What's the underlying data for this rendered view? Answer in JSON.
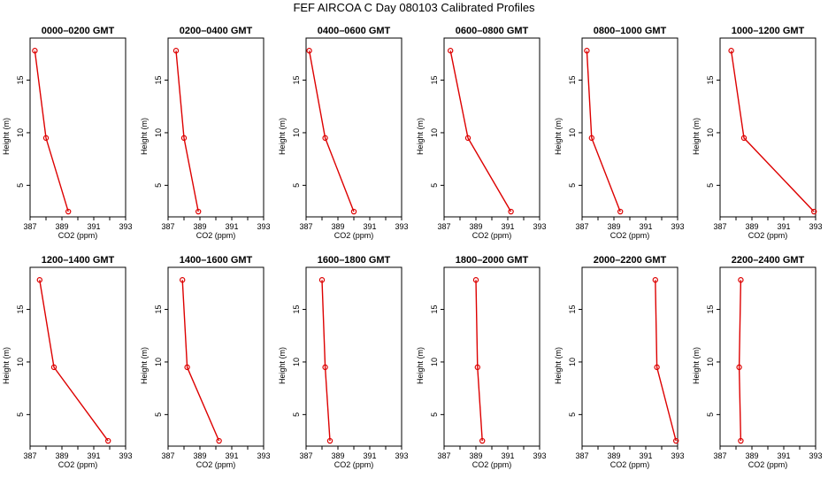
{
  "title": "FEF AIRCOA C  Day 080103  Calibrated Profiles",
  "chart_data": [
    {
      "type": "line",
      "title": "0000–0200 GMT",
      "xlabel": "CO2 (ppm)",
      "ylabel": "Height (m)",
      "xlim": [
        387,
        393
      ],
      "ylim": [
        2,
        19
      ],
      "xticks": [
        "387",
        "389",
        "391",
        "393"
      ],
      "yticks": [
        "5",
        "10",
        "15"
      ],
      "series": [
        {
          "x": [
            387.3,
            388.0,
            389.4
          ],
          "y": [
            17.8,
            9.5,
            2.5
          ]
        }
      ],
      "color": "#dd0000"
    },
    {
      "type": "line",
      "title": "0200–0400 GMT",
      "xlabel": "CO2 (ppm)",
      "ylabel": "Height (m)",
      "xlim": [
        387,
        393
      ],
      "ylim": [
        2,
        19
      ],
      "xticks": [
        "387",
        "389",
        "391",
        "393"
      ],
      "yticks": [
        "5",
        "10",
        "15"
      ],
      "series": [
        {
          "x": [
            387.5,
            388.0,
            388.9
          ],
          "y": [
            17.8,
            9.5,
            2.5
          ]
        }
      ],
      "color": "#dd0000"
    },
    {
      "type": "line",
      "title": "0400–0600 GMT",
      "xlabel": "CO2 (ppm)",
      "ylabel": "Height (m)",
      "xlim": [
        387,
        393
      ],
      "ylim": [
        2,
        19
      ],
      "xticks": [
        "387",
        "389",
        "391",
        "393"
      ],
      "yticks": [
        "5",
        "10",
        "15"
      ],
      "series": [
        {
          "x": [
            387.2,
            388.2,
            390.0
          ],
          "y": [
            17.8,
            9.5,
            2.5
          ]
        }
      ],
      "color": "#dd0000"
    },
    {
      "type": "line",
      "title": "0600–0800 GMT",
      "xlabel": "CO2 (ppm)",
      "ylabel": "Height (m)",
      "xlim": [
        387,
        393
      ],
      "ylim": [
        2,
        19
      ],
      "xticks": [
        "387",
        "389",
        "391",
        "393"
      ],
      "yticks": [
        "5",
        "10",
        "15"
      ],
      "series": [
        {
          "x": [
            387.4,
            388.5,
            391.2
          ],
          "y": [
            17.8,
            9.5,
            2.5
          ]
        }
      ],
      "color": "#dd0000"
    },
    {
      "type": "line",
      "title": "0800–1000 GMT",
      "xlabel": "CO2 (ppm)",
      "ylabel": "Height (m)",
      "xlim": [
        387,
        393
      ],
      "ylim": [
        2,
        19
      ],
      "xticks": [
        "387",
        "389",
        "391",
        "393"
      ],
      "yticks": [
        "5",
        "10",
        "15"
      ],
      "series": [
        {
          "x": [
            387.3,
            387.6,
            389.4
          ],
          "y": [
            17.8,
            9.5,
            2.5
          ]
        }
      ],
      "color": "#dd0000"
    },
    {
      "type": "line",
      "title": "1000–1200 GMT",
      "xlabel": "CO2 (ppm)",
      "ylabel": "Height (m)",
      "xlim": [
        387,
        393
      ],
      "ylim": [
        2,
        19
      ],
      "xticks": [
        "387",
        "389",
        "391",
        "393"
      ],
      "yticks": [
        "5",
        "10",
        "15"
      ],
      "series": [
        {
          "x": [
            387.7,
            388.5,
            392.9
          ],
          "y": [
            17.8,
            9.5,
            2.5
          ]
        }
      ],
      "color": "#dd0000"
    },
    {
      "type": "line",
      "title": "1200–1400 GMT",
      "xlabel": "CO2 (ppm)",
      "ylabel": "Height (m)",
      "xlim": [
        387,
        393
      ],
      "ylim": [
        2,
        19
      ],
      "xticks": [
        "387",
        "389",
        "391",
        "393"
      ],
      "yticks": [
        "5",
        "10",
        "15"
      ],
      "series": [
        {
          "x": [
            387.6,
            388.5,
            391.9
          ],
          "y": [
            17.8,
            9.5,
            2.5
          ]
        }
      ],
      "color": "#dd0000"
    },
    {
      "type": "line",
      "title": "1400–1600 GMT",
      "xlabel": "CO2 (ppm)",
      "ylabel": "Height (m)",
      "xlim": [
        387,
        393
      ],
      "ylim": [
        2,
        19
      ],
      "xticks": [
        "387",
        "389",
        "391",
        "393"
      ],
      "yticks": [
        "5",
        "10",
        "15"
      ],
      "series": [
        {
          "x": [
            387.9,
            388.2,
            390.2
          ],
          "y": [
            17.8,
            9.5,
            2.5
          ]
        }
      ],
      "color": "#dd0000"
    },
    {
      "type": "line",
      "title": "1600–1800 GMT",
      "xlabel": "CO2 (ppm)",
      "ylabel": "Height (m)",
      "xlim": [
        387,
        393
      ],
      "ylim": [
        2,
        19
      ],
      "xticks": [
        "387",
        "389",
        "391",
        "393"
      ],
      "yticks": [
        "5",
        "10",
        "15"
      ],
      "series": [
        {
          "x": [
            388.0,
            388.2,
            388.5
          ],
          "y": [
            17.8,
            9.5,
            2.5
          ]
        }
      ],
      "color": "#dd0000"
    },
    {
      "type": "line",
      "title": "1800–2000 GMT",
      "xlabel": "CO2 (ppm)",
      "ylabel": "Height (m)",
      "xlim": [
        387,
        393
      ],
      "ylim": [
        2,
        19
      ],
      "xticks": [
        "387",
        "389",
        "391",
        "393"
      ],
      "yticks": [
        "5",
        "10",
        "15"
      ],
      "series": [
        {
          "x": [
            389.0,
            389.1,
            389.4
          ],
          "y": [
            17.8,
            9.5,
            2.5
          ]
        }
      ],
      "color": "#dd0000"
    },
    {
      "type": "line",
      "title": "2000–2200 GMT",
      "xlabel": "CO2 (ppm)",
      "ylabel": "Height (m)",
      "xlim": [
        387,
        393
      ],
      "ylim": [
        2,
        19
      ],
      "xticks": [
        "387",
        "389",
        "391",
        "393"
      ],
      "yticks": [
        "5",
        "10",
        "15"
      ],
      "series": [
        {
          "x": [
            391.6,
            391.7,
            392.9
          ],
          "y": [
            17.8,
            9.5,
            2.5
          ]
        }
      ],
      "color": "#dd0000"
    },
    {
      "type": "line",
      "title": "2200–2400 GMT",
      "xlabel": "CO2 (ppm)",
      "ylabel": "Height (m)",
      "xlim": [
        387,
        393
      ],
      "ylim": [
        2,
        19
      ],
      "xticks": [
        "387",
        "389",
        "391",
        "393"
      ],
      "yticks": [
        "5",
        "10",
        "15"
      ],
      "series": [
        {
          "x": [
            388.3,
            388.2,
            388.3
          ],
          "y": [
            17.8,
            9.5,
            2.5
          ]
        }
      ],
      "color": "#dd0000"
    }
  ]
}
